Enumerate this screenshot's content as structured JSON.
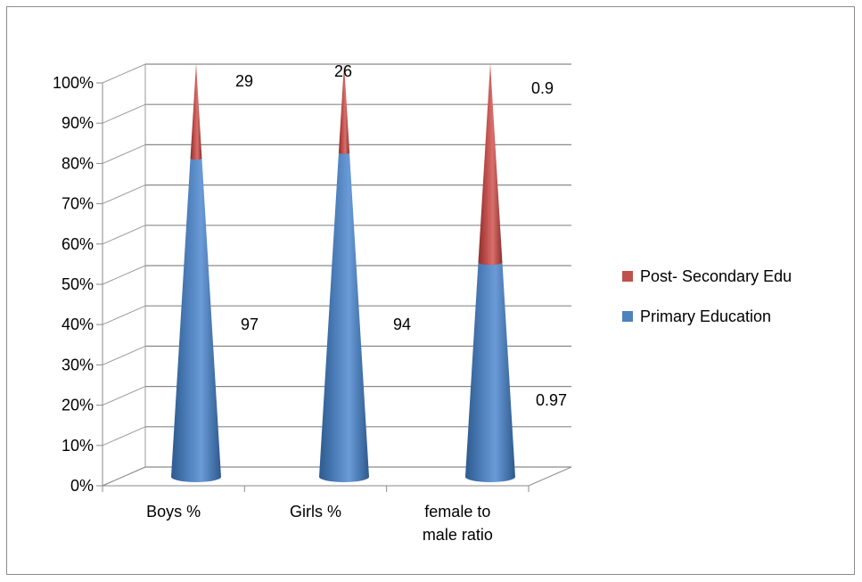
{
  "chart_data": {
    "type": "bar",
    "subtype": "3d-cone-stacked-100",
    "categories": [
      [
        "Boys %"
      ],
      [
        "Girls %"
      ],
      [
        "female to",
        "male ratio"
      ]
    ],
    "series": [
      {
        "name": "Primary Education",
        "color": "#4f81bd",
        "values": [
          97,
          94,
          0.97
        ]
      },
      {
        "name": "Post- Secondary Edu",
        "color": "#c0504d",
        "values": [
          29,
          26,
          0.9
        ]
      }
    ],
    "y_ticks": [
      "0%",
      "10%",
      "20%",
      "30%",
      "40%",
      "50%",
      "60%",
      "70%",
      "80%",
      "90%",
      "100%"
    ],
    "ylim": [
      0,
      100
    ],
    "grid": true,
    "legend_position": "right",
    "legend_order": [
      "Post- Secondary Edu",
      "Primary Education"
    ]
  }
}
